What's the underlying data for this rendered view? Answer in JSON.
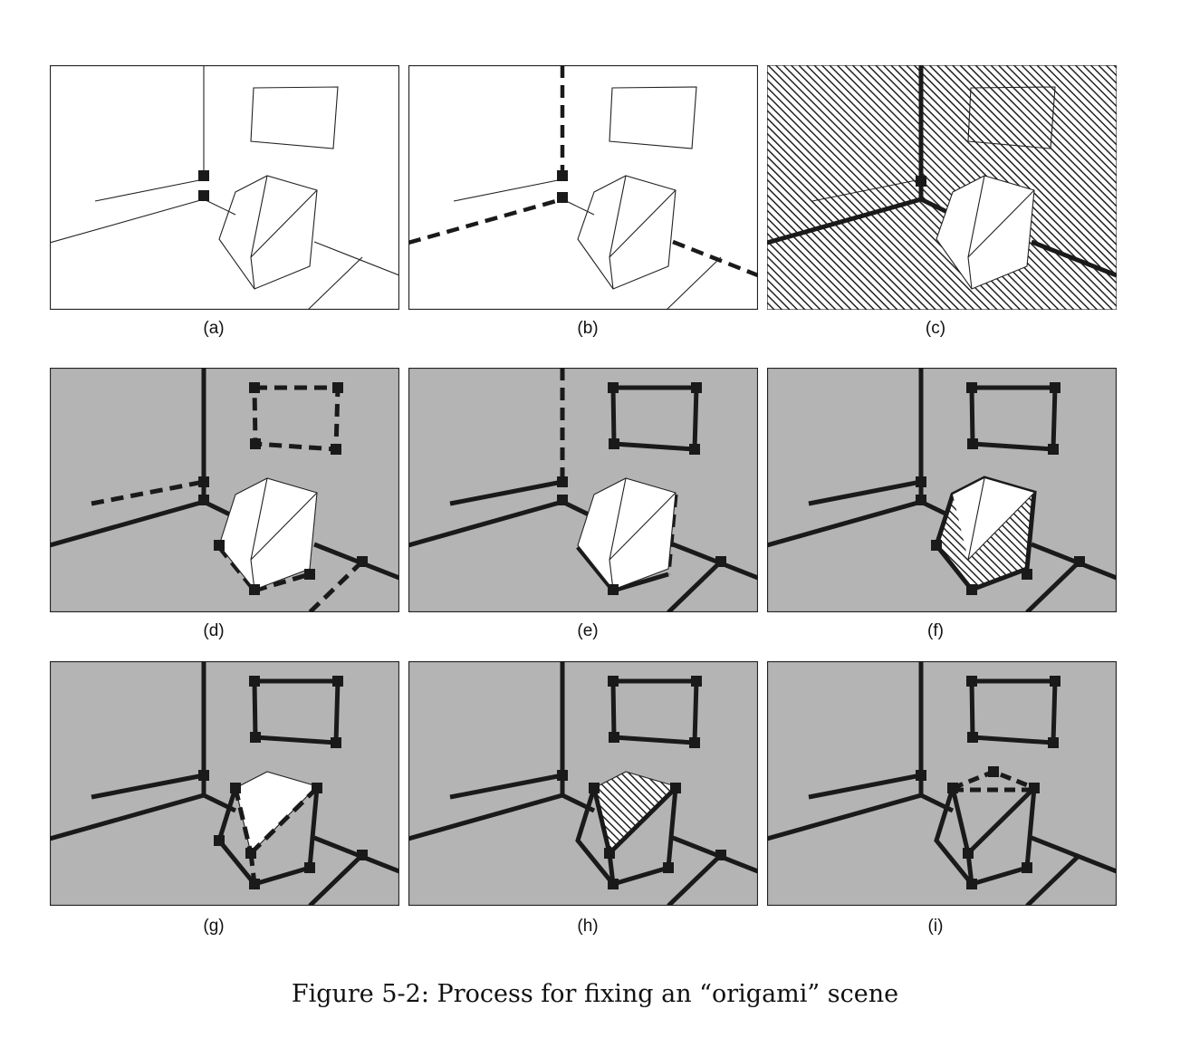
{
  "figure": {
    "caption": "Figure 5-2: Process for fixing an “origami” scene",
    "panels": [
      {
        "label": "(a)",
        "bg": "white"
      },
      {
        "label": "(b)",
        "bg": "white"
      },
      {
        "label": "(c)",
        "bg": "hatch"
      },
      {
        "label": "(d)",
        "bg": "gray"
      },
      {
        "label": "(e)",
        "bg": "gray"
      },
      {
        "label": "(f)",
        "bg": "gray"
      },
      {
        "label": "(g)",
        "bg": "gray"
      },
      {
        "label": "(h)",
        "bg": "gray"
      },
      {
        "label": "(i)",
        "bg": "gray"
      }
    ]
  },
  "colors": {
    "ink": "#1a1a1a",
    "gray_bg": "#b4b4b4",
    "white": "#ffffff"
  }
}
